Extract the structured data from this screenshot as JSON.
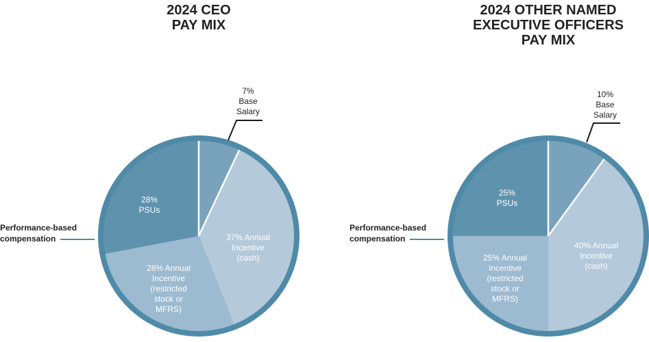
{
  "colors": {
    "outer_ring": "#4f8aa8",
    "psus": "#5f93ad",
    "base_salary": "#79a3bc",
    "annual_incentive_equity": "#9cbad0",
    "annual_incentive_cash": "#b4c9da",
    "label_dark": "#222222",
    "label_light": "#ffffff"
  },
  "chart_data": [
    {
      "type": "pie",
      "title": "2024 CEO\nPAY MIX",
      "slices": [
        {
          "key": "base_salary",
          "value": 7,
          "label": [
            "7%",
            "Base",
            "Salary"
          ]
        },
        {
          "key": "annual_incentive_cash",
          "value": 37,
          "label": [
            "37% Annual",
            "Incentive",
            "(cash)"
          ]
        },
        {
          "key": "annual_incentive_equity",
          "value": 28,
          "label": [
            "28% Annual",
            "Incentive",
            "(restricted",
            "stock or",
            "MFRS)"
          ]
        },
        {
          "key": "psus",
          "value": 28,
          "label": [
            "28%",
            "PSUs"
          ]
        }
      ],
      "annotation": [
        "Performance-based",
        "compensation"
      ]
    },
    {
      "type": "pie",
      "title": "2024 OTHER NAMED\nEXECUTIVE OFFICERS\nPAY MIX",
      "slices": [
        {
          "key": "base_salary",
          "value": 10,
          "label": [
            "10%",
            "Base",
            "Salary"
          ]
        },
        {
          "key": "annual_incentive_cash",
          "value": 40,
          "label": [
            "40% Annual",
            "Incentive",
            "(cash)"
          ]
        },
        {
          "key": "annual_incentive_equity",
          "value": 25,
          "label": [
            "25% Annual",
            "Incentive",
            "(restricted",
            "stock or",
            "MFRS)"
          ]
        },
        {
          "key": "psus",
          "value": 25,
          "label": [
            "25%",
            "PSUs"
          ]
        }
      ],
      "annotation": [
        "Performance-based",
        "compensation"
      ]
    }
  ]
}
